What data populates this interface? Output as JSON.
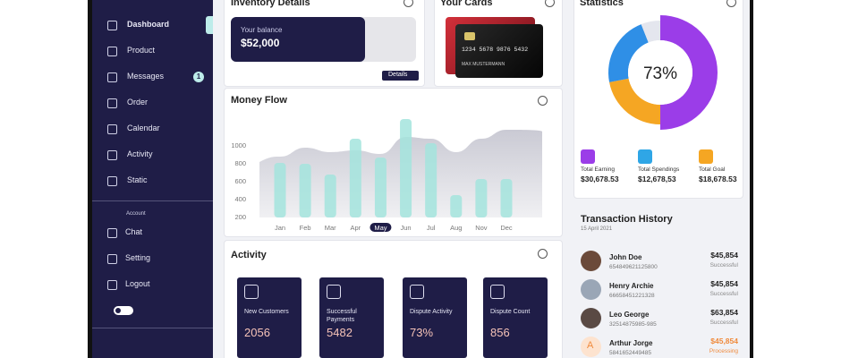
{
  "sidebar": {
    "menu": [
      {
        "label": "Dashboard"
      },
      {
        "label": "Product"
      },
      {
        "label": "Messages",
        "badge": "1"
      },
      {
        "label": "Order"
      },
      {
        "label": "Calendar"
      },
      {
        "label": "Activity"
      },
      {
        "label": "Static"
      }
    ],
    "section": "Account",
    "account": [
      {
        "label": "Chat"
      },
      {
        "label": "Setting"
      },
      {
        "label": "Logout"
      }
    ]
  },
  "inventory": {
    "title": "Inventory Details",
    "balance_label": "Your balance",
    "balance": "$52,000",
    "button": "Details"
  },
  "cards": {
    "title": "Your Cards",
    "number": "1234 5678 9876 5432",
    "holder": "MAX MUSTERMANN"
  },
  "statistics": {
    "title": "Statistics",
    "donut": {
      "values": [
        50,
        22,
        22,
        6
      ],
      "colors": [
        "#9b3de8",
        "#f5a623",
        "#2f8fe6",
        "#e4e6ee"
      ],
      "label": "73%"
    },
    "items": [
      {
        "label": "Total Earning",
        "value": "$30,678.53",
        "color": "#9b3de8"
      },
      {
        "label": "Total Spendings",
        "value": "$12,678,53",
        "color": "#2fa6e6"
      },
      {
        "label": "Total Goal",
        "value": "$18,678.53",
        "color": "#f5a623"
      }
    ]
  },
  "money_flow": {
    "type": "bar",
    "title": "Money Flow",
    "categories": [
      "Jan",
      "Feb",
      "Mar",
      "Apr",
      "May",
      "Jun",
      "Jul",
      "Aug",
      "Nov",
      "Dec"
    ],
    "bar_values": [
      810,
      800,
      680,
      1080,
      870,
      1300,
      1030,
      450,
      630,
      630
    ],
    "area_values": [
      880,
      980,
      930,
      950,
      910,
      1100,
      1080,
      930,
      1080,
      1180
    ],
    "bar_color": "#a3e4dd",
    "area_color": "#c4c4cf",
    "selected_index": 4,
    "ylim": [
      200,
      1400
    ],
    "yticks": [
      200,
      400,
      600,
      800,
      1000
    ]
  },
  "activity": {
    "title": "Activity",
    "tiles": [
      {
        "label": "New Customers",
        "value": "2056"
      },
      {
        "label": "Successful Payments",
        "value": "5482"
      },
      {
        "label": "Dispute Activity",
        "value": "73%"
      },
      {
        "label": "Dispute Count",
        "value": "856"
      }
    ]
  },
  "transactions": {
    "title": "Transaction History",
    "date": "15 April 2021",
    "rows": [
      {
        "name": "John Doe",
        "id": "654849621125800",
        "amount": "$45,854",
        "status": "Successful"
      },
      {
        "name": "Henry Archie",
        "id": "66658451221328",
        "amount": "$45,854",
        "status": "Successful"
      },
      {
        "name": "Leo George",
        "id": "32514875985-985",
        "amount": "$63,854",
        "status": "Successful"
      },
      {
        "name": "Arthur Jorge",
        "id": "5841652449485",
        "amount": "$45,854",
        "status": "Processing",
        "initial": "A"
      }
    ]
  }
}
